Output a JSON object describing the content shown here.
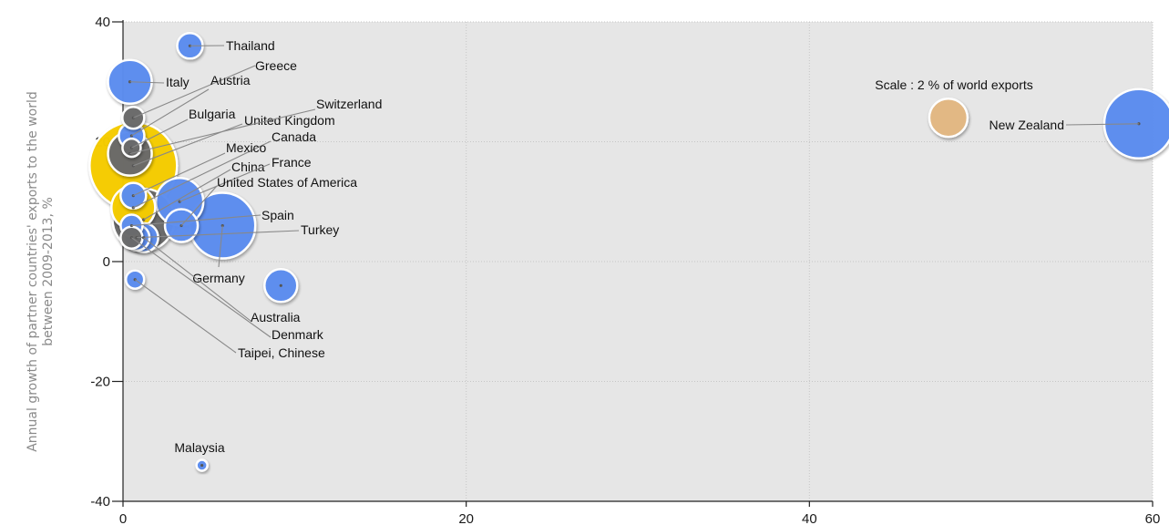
{
  "chart_data": {
    "type": "scatter",
    "title": "",
    "xlabel": "",
    "ylabel": [
      "Annual growth of partner countries' exports to the world",
      "between 2009-2013, %"
    ],
    "xlim": [
      0,
      60
    ],
    "ylim": [
      -40,
      40
    ],
    "x_ticks": [
      0,
      20,
      40,
      60
    ],
    "y_ticks": [
      -40,
      -20,
      0,
      20,
      40
    ],
    "grid": true,
    "scale_note": "Scale : 2 % of world exports",
    "colors": {
      "plot_bg": "#e6e6e6",
      "partner": "#5b8def",
      "gray": "#6b6b6b",
      "highlight": "#f5cc00",
      "scale": "#e2b883",
      "leader": "#888888"
    },
    "points": [
      {
        "name": "Thailand",
        "x": 3.9,
        "y": 36,
        "r": 14,
        "color": "blue",
        "label": true
      },
      {
        "name": "Italy",
        "x": 0.4,
        "y": 30,
        "r": 24,
        "color": "blue",
        "label": true
      },
      {
        "name": "Greece",
        "x": 0.6,
        "y": 24,
        "r": 12,
        "color": "gray",
        "label": true
      },
      {
        "name": "Austria",
        "x": 0.5,
        "y": 21,
        "r": 14,
        "color": "blue",
        "label": true
      },
      {
        "name": "Bulgaria",
        "x": 0.5,
        "y": 19,
        "r": 10,
        "color": "gray",
        "label": true
      },
      {
        "name": "United Kingdom",
        "x": 0.6,
        "y": 16,
        "r": 48,
        "color": "yellow",
        "label": true
      },
      {
        "name": "Switzerland",
        "x": 0.4,
        "y": 18,
        "r": 24,
        "color": "gray",
        "label": true
      },
      {
        "name": "Canada",
        "x": 0.6,
        "y": 9,
        "r": 24,
        "color": "yellow",
        "label": true
      },
      {
        "name": "Mexico",
        "x": 0.6,
        "y": 11,
        "r": 14,
        "color": "blue",
        "label": true
      },
      {
        "name": "China",
        "x": 1.2,
        "y": 7,
        "r": 34,
        "color": "gray",
        "label": true
      },
      {
        "name": "France",
        "x": 3.3,
        "y": 10,
        "r": 26,
        "color": "blue",
        "label": true
      },
      {
        "name": "United States of America",
        "x": 3.4,
        "y": 6,
        "r": 18,
        "color": "blue",
        "label": true
      },
      {
        "name": "Spain",
        "x": 0.5,
        "y": 6,
        "r": 12,
        "color": "blue",
        "label": true
      },
      {
        "name": "Turkey",
        "x": 0.8,
        "y": 4,
        "r": 14,
        "color": "blue",
        "label": true
      },
      {
        "name": "Germany",
        "x": 5.8,
        "y": 6,
        "r": 36,
        "color": "blue",
        "label": true
      },
      {
        "name": "Australia",
        "x": 1.2,
        "y": 4,
        "r": 16,
        "color": "blue",
        "label": true
      },
      {
        "name": "Denmark",
        "x": 0.5,
        "y": 4,
        "r": 12,
        "color": "gray",
        "label": true
      },
      {
        "name": "Taipei, Chinese",
        "x": 0.7,
        "y": -3,
        "r": 10,
        "color": "blue",
        "label": true
      },
      {
        "name": "",
        "x": 9.2,
        "y": -4,
        "r": 18,
        "color": "blue",
        "label": false
      },
      {
        "name": "Malaysia",
        "x": 4.6,
        "y": -34,
        "r": 6,
        "color": "blue",
        "label": true
      },
      {
        "name": "New Zealand",
        "x": 59.2,
        "y": 23,
        "r": 38,
        "color": "blue",
        "label": true
      },
      {
        "name": "",
        "x": 48.1,
        "y": 24,
        "r": 21,
        "color": "scale",
        "label": false
      }
    ]
  }
}
